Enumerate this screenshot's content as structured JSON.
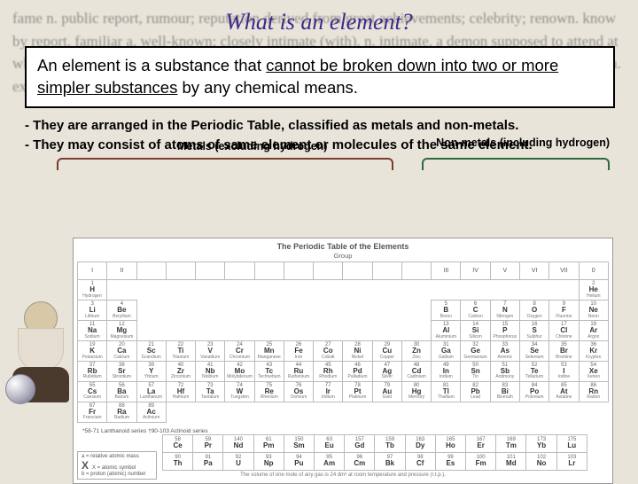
{
  "bg_text": "fame n. public report, rumour; reputation derived from great achievements; celebrity; renown. know by report. familiar a. well-known; closely intimate (with). n. intimate, a demon supposed to attend at which call. familiarity n. famfame n. public report, rumour; familiar. domestic. a. -lo -fame famine n. extreme scarcity of food; starvation. symbol of",
  "title": "What is an element?",
  "definition": {
    "prefix": "An element is a substance that ",
    "underlined": "cannot be broken down into two or more simpler substances",
    "suffix": " by any chemical means."
  },
  "bullets": {
    "line1": "- They are arranged in the Periodic Table, classified as metals and non-metals.",
    "line2": "- They may consist of atoms of same element or molecules of the same element."
  },
  "annotations": {
    "metals": "Metals (excluding hydrogen)",
    "nonmetals": "Non-metals (including hydrogen)"
  },
  "periodic_table": {
    "title": "The Periodic Table of the Elements",
    "subtitle": "Group",
    "groups": [
      "I",
      "II",
      "",
      "",
      "",
      "",
      "",
      "",
      "",
      "",
      "",
      "",
      "III",
      "IV",
      "V",
      "VI",
      "VII",
      "0"
    ],
    "rows": [
      [
        {
          "n": "1",
          "s": "H",
          "m": "Hydrogen"
        },
        null,
        null,
        null,
        null,
        null,
        null,
        null,
        null,
        null,
        null,
        null,
        null,
        null,
        null,
        null,
        null,
        {
          "n": "2",
          "s": "He",
          "m": "Helium"
        }
      ],
      [
        {
          "n": "3",
          "s": "Li",
          "m": "Lithium"
        },
        {
          "n": "4",
          "s": "Be",
          "m": "Beryllium"
        },
        null,
        null,
        null,
        null,
        null,
        null,
        null,
        null,
        null,
        null,
        {
          "n": "5",
          "s": "B",
          "m": "Boron"
        },
        {
          "n": "6",
          "s": "C",
          "m": "Carbon"
        },
        {
          "n": "7",
          "s": "N",
          "m": "Nitrogen"
        },
        {
          "n": "8",
          "s": "O",
          "m": "Oxygen"
        },
        {
          "n": "9",
          "s": "F",
          "m": "Fluorine"
        },
        {
          "n": "10",
          "s": "Ne",
          "m": "Neon"
        }
      ],
      [
        {
          "n": "11",
          "s": "Na",
          "m": "Sodium"
        },
        {
          "n": "12",
          "s": "Mg",
          "m": "Magnesium"
        },
        null,
        null,
        null,
        null,
        null,
        null,
        null,
        null,
        null,
        null,
        {
          "n": "13",
          "s": "Al",
          "m": "Aluminium"
        },
        {
          "n": "14",
          "s": "Si",
          "m": "Silicon"
        },
        {
          "n": "15",
          "s": "P",
          "m": "Phosphorus"
        },
        {
          "n": "16",
          "s": "S",
          "m": "Sulphur"
        },
        {
          "n": "17",
          "s": "Cl",
          "m": "Chlorine"
        },
        {
          "n": "18",
          "s": "Ar",
          "m": "Argon"
        }
      ],
      [
        {
          "n": "19",
          "s": "K",
          "m": "Potassium"
        },
        {
          "n": "20",
          "s": "Ca",
          "m": "Calcium"
        },
        {
          "n": "21",
          "s": "Sc",
          "m": "Scandium"
        },
        {
          "n": "22",
          "s": "Ti",
          "m": "Titanium"
        },
        {
          "n": "23",
          "s": "V",
          "m": "Vanadium"
        },
        {
          "n": "24",
          "s": "Cr",
          "m": "Chromium"
        },
        {
          "n": "25",
          "s": "Mn",
          "m": "Manganese"
        },
        {
          "n": "26",
          "s": "Fe",
          "m": "Iron"
        },
        {
          "n": "27",
          "s": "Co",
          "m": "Cobalt"
        },
        {
          "n": "28",
          "s": "Ni",
          "m": "Nickel"
        },
        {
          "n": "29",
          "s": "Cu",
          "m": "Copper"
        },
        {
          "n": "30",
          "s": "Zn",
          "m": "Zinc"
        },
        {
          "n": "31",
          "s": "Ga",
          "m": "Gallium"
        },
        {
          "n": "32",
          "s": "Ge",
          "m": "Germanium"
        },
        {
          "n": "33",
          "s": "As",
          "m": "Arsenic"
        },
        {
          "n": "34",
          "s": "Se",
          "m": "Selenium"
        },
        {
          "n": "35",
          "s": "Br",
          "m": "Bromine"
        },
        {
          "n": "36",
          "s": "Kr",
          "m": "Krypton"
        }
      ],
      [
        {
          "n": "37",
          "s": "Rb",
          "m": "Rubidium"
        },
        {
          "n": "38",
          "s": "Sr",
          "m": "Strontium"
        },
        {
          "n": "39",
          "s": "Y",
          "m": "Yttrium"
        },
        {
          "n": "40",
          "s": "Zr",
          "m": "Zirconium"
        },
        {
          "n": "41",
          "s": "Nb",
          "m": "Niobium"
        },
        {
          "n": "42",
          "s": "Mo",
          "m": "Molybdenum"
        },
        {
          "n": "43",
          "s": "Tc",
          "m": "Technetium"
        },
        {
          "n": "44",
          "s": "Ru",
          "m": "Ruthenium"
        },
        {
          "n": "45",
          "s": "Rh",
          "m": "Rhodium"
        },
        {
          "n": "46",
          "s": "Pd",
          "m": "Palladium"
        },
        {
          "n": "47",
          "s": "Ag",
          "m": "Silver"
        },
        {
          "n": "48",
          "s": "Cd",
          "m": "Cadmium"
        },
        {
          "n": "49",
          "s": "In",
          "m": "Indium"
        },
        {
          "n": "50",
          "s": "Sn",
          "m": "Tin"
        },
        {
          "n": "51",
          "s": "Sb",
          "m": "Antimony"
        },
        {
          "n": "52",
          "s": "Te",
          "m": "Tellurium"
        },
        {
          "n": "53",
          "s": "I",
          "m": "Iodine"
        },
        {
          "n": "54",
          "s": "Xe",
          "m": "Xenon"
        }
      ],
      [
        {
          "n": "55",
          "s": "Cs",
          "m": "Caesium"
        },
        {
          "n": "56",
          "s": "Ba",
          "m": "Barium"
        },
        {
          "n": "57",
          "s": "La",
          "m": "Lanthanum"
        },
        {
          "n": "72",
          "s": "Hf",
          "m": "Hafnium"
        },
        {
          "n": "73",
          "s": "Ta",
          "m": "Tantalum"
        },
        {
          "n": "74",
          "s": "W",
          "m": "Tungsten"
        },
        {
          "n": "75",
          "s": "Re",
          "m": "Rhenium"
        },
        {
          "n": "76",
          "s": "Os",
          "m": "Osmium"
        },
        {
          "n": "77",
          "s": "Ir",
          "m": "Iridium"
        },
        {
          "n": "78",
          "s": "Pt",
          "m": "Platinum"
        },
        {
          "n": "79",
          "s": "Au",
          "m": "Gold"
        },
        {
          "n": "80",
          "s": "Hg",
          "m": "Mercury"
        },
        {
          "n": "81",
          "s": "Tl",
          "m": "Thallium"
        },
        {
          "n": "82",
          "s": "Pb",
          "m": "Lead"
        },
        {
          "n": "83",
          "s": "Bi",
          "m": "Bismuth"
        },
        {
          "n": "84",
          "s": "Po",
          "m": "Polonium"
        },
        {
          "n": "85",
          "s": "At",
          "m": "Astatine"
        },
        {
          "n": "86",
          "s": "Rn",
          "m": "Radon"
        }
      ],
      [
        {
          "n": "87",
          "s": "Fr",
          "m": "Francium"
        },
        {
          "n": "88",
          "s": "Ra",
          "m": "Radium"
        },
        {
          "n": "89",
          "s": "Ac",
          "m": "Actinium"
        },
        null,
        null,
        null,
        null,
        null,
        null,
        null,
        null,
        null,
        null,
        null,
        null,
        null,
        null,
        null
      ]
    ],
    "lan_label": "*58-71 Lanthanoid series\n†90-103 Actinoid series",
    "lan_row": [
      {
        "n": "58",
        "s": "Ce"
      },
      {
        "n": "59",
        "s": "Pr"
      },
      {
        "n": "140",
        "s": "Nd"
      },
      {
        "n": "61",
        "s": "Pm"
      },
      {
        "n": "150",
        "s": "Sm"
      },
      {
        "n": "63",
        "s": "Eu"
      },
      {
        "n": "157",
        "s": "Gd"
      },
      {
        "n": "159",
        "s": "Tb"
      },
      {
        "n": "163",
        "s": "Dy"
      },
      {
        "n": "165",
        "s": "Ho"
      },
      {
        "n": "167",
        "s": "Er"
      },
      {
        "n": "169",
        "s": "Tm"
      },
      {
        "n": "173",
        "s": "Yb"
      },
      {
        "n": "175",
        "s": "Lu"
      }
    ],
    "act_row": [
      {
        "n": "90",
        "s": "Th"
      },
      {
        "n": "91",
        "s": "Pa"
      },
      {
        "n": "92",
        "s": "U"
      },
      {
        "n": "93",
        "s": "Np"
      },
      {
        "n": "94",
        "s": "Pu"
      },
      {
        "n": "95",
        "s": "Am"
      },
      {
        "n": "96",
        "s": "Cm"
      },
      {
        "n": "97",
        "s": "Bk"
      },
      {
        "n": "98",
        "s": "Cf"
      },
      {
        "n": "99",
        "s": "Es"
      },
      {
        "n": "100",
        "s": "Fm"
      },
      {
        "n": "101",
        "s": "Md"
      },
      {
        "n": "102",
        "s": "No"
      },
      {
        "n": "103",
        "s": "Lr"
      }
    ],
    "legend": {
      "a_label": "a = relative atomic mass",
      "sym": "X",
      "sym_label": "X = atomic symbol",
      "b_label": "b = proton (atomic) number"
    },
    "footer": "The volume of one mole of any gas is 24 dm³ at room temperature and pressure (r.t.p.)."
  },
  "colors": {
    "title": "#3b2a8a",
    "bg": "#e8e4d9",
    "defbox_bg": "#ffffff",
    "brace_metals": "#7a3d2e",
    "brace_nonmetals": "#2e6b3a"
  }
}
